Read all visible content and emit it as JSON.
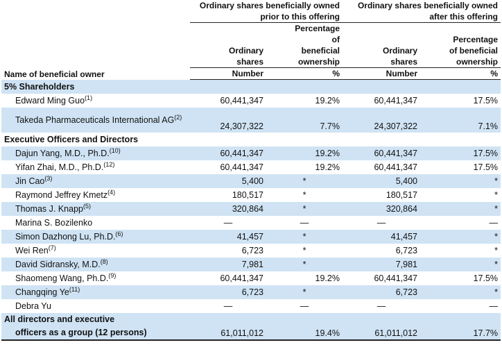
{
  "header": {
    "group_prior": "Ordinary shares beneficially owned prior to this offering",
    "group_after": "Ordinary shares beneficially owned after this offering",
    "col_ordinary_shares": "Ordinary shares",
    "col_percentage": "Percentage of beneficial ownership",
    "name_label": "Name of beneficial owner",
    "unit_number": "Number",
    "unit_pct": "%"
  },
  "sections": {
    "five_pct": "5% Shareholders",
    "executives": "Executive Officers and Directors"
  },
  "rows": [
    {
      "name": "Edward Ming Guo",
      "note": "(1)",
      "prior_number": "60,441,347",
      "prior_pct": "19.2%",
      "after_number": "60,441,347",
      "after_pct": "17.5%"
    },
    {
      "name": "Takeda Pharmaceuticals International AG",
      "note": "(2)",
      "prior_number": "24,307,322",
      "prior_pct": "7.7%",
      "after_number": "24,307,322",
      "after_pct": "7.1%"
    },
    {
      "name": "Dajun Yang, M.D., Ph.D.",
      "note": "(10)",
      "prior_number": "60,441,347",
      "prior_pct": "19.2%",
      "after_number": "60,441,347",
      "after_pct": "17.5%"
    },
    {
      "name": "Yifan Zhai, M.D., Ph.D.",
      "note": "(12)",
      "prior_number": "60,441,347",
      "prior_pct": "19.2%",
      "after_number": "60,441,347",
      "after_pct": "17.5%"
    },
    {
      "name": "Jin Cao",
      "note": "(3)",
      "prior_number": "5,400",
      "prior_pct": "*",
      "after_number": "5,400",
      "after_pct": "*"
    },
    {
      "name": "Raymond Jeffrey Kmetz",
      "note": "(4)",
      "prior_number": "180,517",
      "prior_pct": "*",
      "after_number": "180,517",
      "after_pct": "*"
    },
    {
      "name": "Thomas J. Knapp",
      "note": "(5)",
      "prior_number": "320,864",
      "prior_pct": "*",
      "after_number": "320,864",
      "after_pct": "*"
    },
    {
      "name": "Marina S. Bozilenko",
      "note": "",
      "prior_number": "—",
      "prior_pct": "—",
      "after_number": "—",
      "after_pct": "—"
    },
    {
      "name": "Simon Dazhong Lu, Ph.D.",
      "note": "(6)",
      "prior_number": "41,457",
      "prior_pct": "*",
      "after_number": "41,457",
      "after_pct": "*"
    },
    {
      "name": "Wei Ren",
      "note": "(7)",
      "prior_number": "6,723",
      "prior_pct": "*",
      "after_number": "6,723",
      "after_pct": "*"
    },
    {
      "name": "David Sidransky, M.D.",
      "note": "(8)",
      "prior_number": "7,981",
      "prior_pct": "*",
      "after_number": "7,981",
      "after_pct": "*"
    },
    {
      "name": "Shaomeng Wang, Ph.D.",
      "note": "(9)",
      "prior_number": "60,441,347",
      "prior_pct": "19.2%",
      "after_number": "60,441,347",
      "after_pct": "17.5%"
    },
    {
      "name": "Changqing Ye",
      "note": "(11)",
      "prior_number": "6,723",
      "prior_pct": "*",
      "after_number": "6,723",
      "after_pct": "*"
    },
    {
      "name": "Debra Yu",
      "note": "",
      "prior_number": "—",
      "prior_pct": "—",
      "after_number": "—",
      "after_pct": "—"
    }
  ],
  "total": {
    "line1": "All directors and executive",
    "line2": "officers as a group (12 persons)",
    "prior_number": "61,011,012",
    "prior_pct": "19.4%",
    "after_number": "61,011,012",
    "after_pct": "17.7%"
  }
}
